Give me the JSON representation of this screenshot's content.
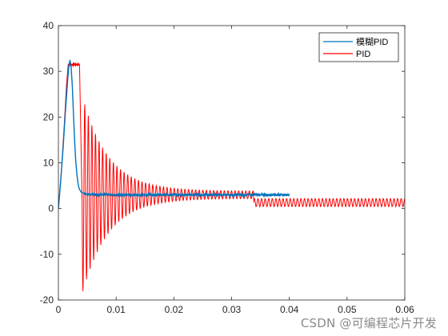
{
  "chart_data": {
    "type": "line",
    "xlim": [
      0,
      0.06
    ],
    "ylim": [
      -20,
      40
    ],
    "x_ticks": [
      0,
      0.01,
      0.02,
      0.03,
      0.04,
      0.05,
      0.06
    ],
    "x_tick_labels": [
      "0",
      "0.01",
      "0.02",
      "0.03",
      "0.04",
      "0.05",
      "0.06"
    ],
    "y_ticks": [
      -20,
      -10,
      0,
      10,
      20,
      30,
      40
    ],
    "y_tick_labels": [
      "-20",
      "-10",
      "0",
      "10",
      "20",
      "30",
      "40"
    ],
    "grid": false,
    "legend_position": "top-right",
    "series": [
      {
        "name": "模糊PID",
        "color": "#0072bd",
        "points": [
          [
            0,
            0
          ],
          [
            0.0004,
            6
          ],
          [
            0.0008,
            13
          ],
          [
            0.0012,
            21
          ],
          [
            0.0016,
            28
          ],
          [
            0.0018,
            31
          ],
          [
            0.002,
            32.4
          ],
          [
            0.0022,
            31
          ],
          [
            0.0024,
            27
          ],
          [
            0.0026,
            21
          ],
          [
            0.0028,
            15
          ],
          [
            0.003,
            10.5
          ],
          [
            0.0032,
            7.5
          ],
          [
            0.0034,
            5.5
          ],
          [
            0.0036,
            4.3
          ],
          [
            0.004,
            3.5
          ],
          [
            0.005,
            3.1
          ],
          [
            0.01,
            3.0
          ],
          [
            0.02,
            3.0
          ],
          [
            0.03,
            3.0
          ],
          [
            0.0338,
            3.0
          ],
          [
            0.034,
            3.0
          ],
          [
            0.04,
            3.0
          ]
        ],
        "noise_amplitude": 0.4
      },
      {
        "name": "PID",
        "color": "#ff0000",
        "rise": [
          [
            0,
            0
          ],
          [
            0.0005,
            8
          ],
          [
            0.001,
            18
          ],
          [
            0.0014,
            27
          ],
          [
            0.0017,
            31.5
          ]
        ],
        "plateau": {
          "from": 0.0017,
          "to": 0.0037,
          "value": 31.5,
          "ripple": 0.8
        },
        "drop_to": [
          0.0041,
          2
        ],
        "oscillation": {
          "from": 0.0041,
          "to": 0.0338,
          "center": 3.0,
          "initial_amplitude": 21,
          "decay_time": 0.0045,
          "residual_amplitude": 0.8,
          "period": 0.00062
        },
        "after_step": {
          "from": 0.0338,
          "to": 0.06,
          "center": 1.3,
          "amplitude": 0.9,
          "period": 0.00062
        }
      }
    ]
  },
  "watermark": "CSDN @可编程芯片开发"
}
